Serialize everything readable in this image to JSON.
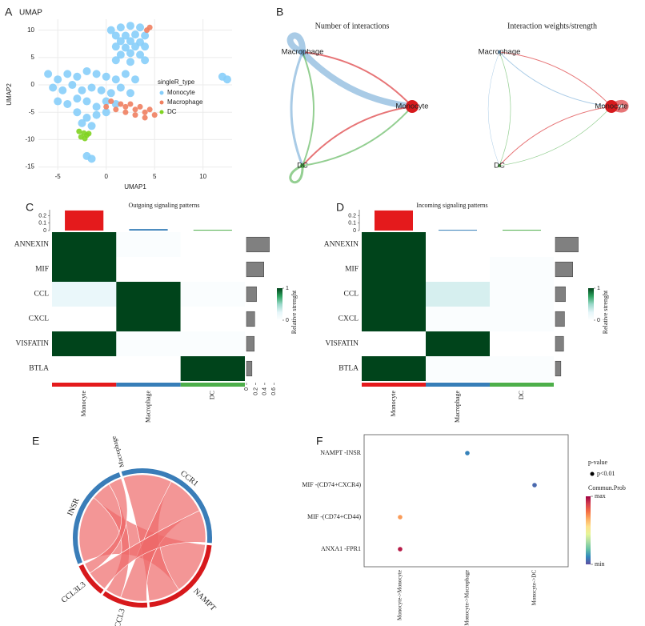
{
  "chart_data": [
    {
      "panel": "A",
      "type": "scatter",
      "title": "UMAP",
      "xlabel": "UMAP1",
      "ylabel": "UMAP2",
      "xlim": [
        -7,
        13
      ],
      "ylim": [
        -15.5,
        12
      ],
      "xticks": [
        -5,
        0,
        5,
        10
      ],
      "yticks": [
        -15,
        -10,
        -5,
        0,
        5,
        10
      ],
      "grid": true,
      "legend_title": "singleR_type",
      "series": [
        {
          "name": "Monocyte",
          "color": "#87CEFA",
          "x": [
            0.5,
            1.5,
            2.5,
            3.5,
            1,
            2,
            3,
            4,
            1.5,
            2.5,
            3.5,
            1,
            2,
            3,
            4,
            1.5,
            2.5,
            3.5,
            1,
            2.5,
            4,
            -6,
            -5,
            -4,
            -3,
            -2,
            -1,
            0,
            1,
            2,
            3,
            -5.5,
            -4.5,
            -3.5,
            -2.5,
            -1.5,
            -0.5,
            0.5,
            1.5,
            2.5,
            -5,
            -4,
            -3,
            -2,
            -1,
            0,
            1,
            -3,
            -2,
            -1,
            0,
            -2.5,
            -1.5,
            12,
            12.5,
            -2,
            -1.5
          ],
          "y": [
            10,
            10.5,
            10.8,
            10.5,
            9,
            9,
            9.2,
            9,
            8,
            8,
            7.8,
            7,
            6.8,
            7,
            7,
            5.5,
            5.8,
            5.5,
            4.5,
            4.2,
            4.5,
            2,
            1,
            2,
            1.5,
            2.5,
            2,
            1.5,
            1,
            2,
            1,
            -0.5,
            -1,
            0,
            -1,
            -0.5,
            -1,
            -1.5,
            -0.5,
            -1.5,
            -3,
            -3.5,
            -2.5,
            -3,
            -4,
            -3,
            -3.5,
            -5,
            -6,
            -5.5,
            -5,
            -7,
            -7.5,
            1.5,
            1,
            -13,
            -13.5
          ]
        },
        {
          "name": "Macrophage",
          "color": "#F08060",
          "x": [
            4.5,
            4.2,
            0.5,
            1.5,
            2,
            2.5,
            3,
            3.5,
            4,
            4.5,
            5,
            3,
            2,
            1,
            0,
            4
          ],
          "y": [
            10.5,
            10,
            -3,
            -3.5,
            -4,
            -3.5,
            -4.5,
            -4,
            -5,
            -4.5,
            -5.5,
            -5.5,
            -5,
            -4.5,
            -4,
            -6
          ]
        },
        {
          "name": "DC",
          "color": "#7FD320",
          "x": [
            -2.8,
            -2.3,
            -2,
            -2.6,
            -2.2,
            -1.8
          ],
          "y": [
            -8.5,
            -8.8,
            -9.2,
            -9.5,
            -9.8,
            -8.9
          ]
        }
      ]
    },
    {
      "panel": "B",
      "type": "network",
      "title": "Number of interactions",
      "nodes": [
        {
          "name": "Macrophage",
          "color": "#6FA8D6",
          "size": 3
        },
        {
          "name": "Monocyte",
          "color": "#D7191C",
          "size": 8
        },
        {
          "name": "DC",
          "color": "#4DAF4A",
          "size": 3
        }
      ],
      "edges": [
        {
          "source": 0,
          "target": 0,
          "value": 8
        },
        {
          "source": 0,
          "target": 1,
          "value": 8
        },
        {
          "source": 1,
          "target": 0,
          "value": 2
        },
        {
          "source": 1,
          "target": 2,
          "value": 2
        },
        {
          "source": 2,
          "target": 1,
          "value": 2
        },
        {
          "source": 2,
          "target": 0,
          "value": 2
        },
        {
          "source": 0,
          "target": 2,
          "value": 3
        },
        {
          "source": 2,
          "target": 2,
          "value": 3
        }
      ]
    },
    {
      "type": "network",
      "title": "Interaction weights/strength",
      "nodes": [
        {
          "name": "Macrophage",
          "color": "#6FA8D6",
          "size": 2
        },
        {
          "name": "Monocyte",
          "color": "#D7191C",
          "size": 8
        },
        {
          "name": "DC",
          "color": "#4DAF4A",
          "size": 2
        }
      ],
      "edges": [
        {
          "source": 0,
          "target": 1,
          "value": 1
        },
        {
          "source": 1,
          "target": 1,
          "value": 6
        },
        {
          "source": 1,
          "target": 0,
          "value": 1
        },
        {
          "source": 1,
          "target": 2,
          "value": 1
        },
        {
          "source": 2,
          "target": 1,
          "value": 0.7
        },
        {
          "source": 2,
          "target": 0,
          "value": 0.7
        },
        {
          "source": 0,
          "target": 2,
          "value": 0.5
        }
      ]
    },
    {
      "panel": "C",
      "type": "heatmap",
      "title": "Outgoing signaling patterns",
      "rows": [
        "ANNEXIN",
        "MIF",
        "CCL",
        "CXCL",
        "VISFATIN",
        "BTLA"
      ],
      "columns": [
        "Monocyte",
        "Macrophage",
        "DC"
      ],
      "column_colors": [
        "#E41A1C",
        "#377EB8",
        "#4DAF4A"
      ],
      "values": [
        [
          1,
          0.05,
          0
        ],
        [
          1,
          0,
          0
        ],
        [
          0.2,
          1,
          0.05
        ],
        [
          0,
          1,
          0
        ],
        [
          1,
          0.05,
          0.05
        ],
        [
          0,
          0,
          1
        ]
      ],
      "colormap": [
        "#FFFFFF",
        "#E5F5F9",
        "#99D8C9",
        "#2CA25F",
        "#00441B"
      ],
      "colorbar_title": "Relative strenght",
      "colorbar_ticks": [
        0,
        1
      ],
      "top_values": [
        0.27,
        0.02,
        0.01
      ],
      "top_lim": [
        0,
        0.28
      ],
      "top_ticks": [
        0,
        0.1,
        0.2
      ],
      "right_values": [
        0.5,
        0.38,
        0.22,
        0.18,
        0.17,
        0.12
      ],
      "right_lim": [
        0,
        0.7
      ],
      "right_ticks": [
        0,
        0.2,
        0.4,
        0.6
      ],
      "right_color": "#808080"
    },
    {
      "panel": "D",
      "type": "heatmap",
      "title": "Incoming signaling patterns",
      "rows": [
        "ANNEXIN",
        "MIF",
        "CCL",
        "CXCL",
        "VISFATIN",
        "BTLA"
      ],
      "columns": [
        "Monocyte",
        "Macrophage",
        "DC"
      ],
      "column_colors": [
        "#E41A1C",
        "#377EB8",
        "#4DAF4A"
      ],
      "values": [
        [
          1,
          0,
          0
        ],
        [
          1,
          0,
          0.05
        ],
        [
          1,
          0.3,
          0.05
        ],
        [
          1,
          0.05,
          0.05
        ],
        [
          0,
          1,
          0
        ],
        [
          1,
          0.05,
          0.05
        ]
      ],
      "colormap": [
        "#FFFFFF",
        "#E5F5F9",
        "#99D8C9",
        "#2CA25F",
        "#00441B"
      ],
      "colorbar_title": "Relative strenght",
      "colorbar_ticks": [
        0,
        1
      ],
      "top_values": [
        0.27,
        0.01,
        0.01
      ],
      "top_lim": [
        0,
        0.28
      ],
      "top_ticks": [
        0,
        0.1,
        0.2
      ],
      "right_values": [
        0.5,
        0.38,
        0.22,
        0.2,
        0.18,
        0.12
      ],
      "right_lim": [
        0,
        0.7
      ],
      "right_color": "#808080"
    },
    {
      "panel": "E",
      "type": "chord",
      "group_label": "Macrophage",
      "sectors": [
        {
          "name": "INSR",
          "value": 95,
          "color": "#3A7DB8"
        },
        {
          "name": "CCR1",
          "value": 115,
          "color": "#3A7DB8"
        },
        {
          "name": "NAMPT",
          "value": 80,
          "color": "#D7191C"
        },
        {
          "name": "CCL3",
          "value": 40,
          "color": "#D7191C"
        },
        {
          "name": "CCL3L3",
          "value": 30,
          "color": "#D7191C"
        }
      ],
      "chords": [
        {
          "source": 2,
          "target": 0,
          "value": 50
        },
        {
          "source": 2,
          "target": 1,
          "value": 30
        },
        {
          "source": 3,
          "target": 1,
          "value": 25
        },
        {
          "source": 3,
          "target": 0,
          "value": 15
        },
        {
          "source": 4,
          "target": 1,
          "value": 20
        },
        {
          "source": 4,
          "target": 0,
          "value": 10
        }
      ],
      "chord_color": "#EE6A6A"
    },
    {
      "panel": "F",
      "type": "dot",
      "y_categories": [
        "ANXA1 -FPR1",
        "MIF -(CD74+CD44)",
        "MIF -(CD74+CXCR4)",
        "NAMPT -INSR"
      ],
      "x_categories": [
        "Monocyte->Monocyte",
        "Monocyte->Macrophage",
        "Monocyte->DC"
      ],
      "points": [
        {
          "x": 0,
          "y": 0,
          "value": 0.95
        },
        {
          "x": 0,
          "y": 1,
          "value": 0.7
        },
        {
          "x": 2,
          "y": 2,
          "value": 0.05
        },
        {
          "x": 1,
          "y": 3,
          "value": 0.1
        }
      ],
      "colormap": [
        "#5E4FA2",
        "#3288BD",
        "#66C2A5",
        "#ABDDA4",
        "#E6F598",
        "#FEE08B",
        "#FDAE61",
        "#F46D43",
        "#D53E4F",
        "#9E0142"
      ],
      "clim": [
        0,
        1
      ],
      "colorbar_title": "Commun.Prob",
      "colorbar_ticks": [
        {
          "value": 0,
          "label": "min"
        },
        {
          "value": 1,
          "label": "max"
        }
      ],
      "size_legend_title": "p-value",
      "size_legend_label": "p<0.01"
    }
  ]
}
